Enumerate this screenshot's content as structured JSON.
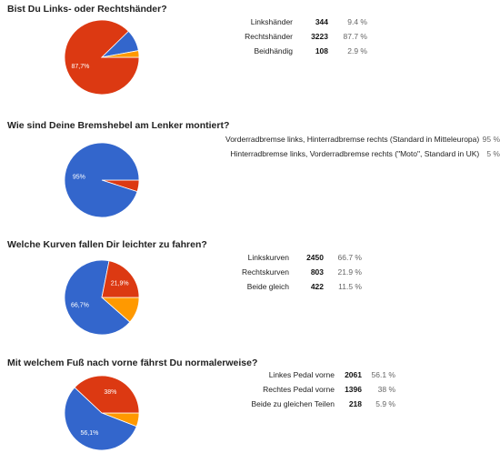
{
  "chart_data": [
    {
      "type": "pie",
      "title": "Bist Du Links- oder Rechtshänder?",
      "slices": [
        {
          "label": "Linkshänder",
          "count": "344",
          "percent": "9.4 %",
          "value": 9.4,
          "color": "#3366cc"
        },
        {
          "label": "Rechtshänder",
          "count": "3223",
          "percent": "87.7 %",
          "value": 87.7,
          "color": "#dc3912",
          "pie_label": "87,7%"
        },
        {
          "label": "Beidhändig",
          "count": "108",
          "percent": "2.9 %",
          "value": 2.9,
          "color": "#ff9900"
        }
      ],
      "slice_order": [
        1,
        0,
        2
      ]
    },
    {
      "type": "pie",
      "title": "Wie sind Deine Bremshebel am Lenker montiert?",
      "slices": [
        {
          "label": "Vorderradbremse links, Hinterradbremse rechts (Standard in Mitteleuropa)",
          "percent": "95 %",
          "value": 95,
          "color": "#3366cc",
          "pie_label": "95%"
        },
        {
          "label": "Hinterradbremse links, Vorderradbremse rechts (\"Moto\", Standard in UK)",
          "percent": "5 %",
          "value": 5,
          "color": "#dc3912"
        }
      ],
      "slice_order": [
        1,
        0
      ]
    },
    {
      "type": "pie",
      "title": "Welche Kurven fallen Dir leichter zu fahren?",
      "slices": [
        {
          "label": "Linkskurven",
          "count": "2450",
          "percent": "66.7 %",
          "value": 66.7,
          "color": "#3366cc",
          "pie_label": "66,7%"
        },
        {
          "label": "Rechtskurven",
          "count": "803",
          "percent": "21.9 %",
          "value": 21.9,
          "color": "#dc3912",
          "pie_label": "21,9%"
        },
        {
          "label": "Beide gleich",
          "count": "422",
          "percent": "11.5 %",
          "value": 11.5,
          "color": "#ff9900"
        }
      ],
      "slice_order": [
        2,
        0,
        1
      ]
    },
    {
      "type": "pie",
      "title": "Mit welchem Fuß nach vorne fährst Du normalerweise?",
      "slices": [
        {
          "label": "Linkes Pedal vorne",
          "count": "2061",
          "percent": "56.1 %",
          "value": 56.1,
          "color": "#3366cc",
          "pie_label": "56,1%"
        },
        {
          "label": "Rechtes Pedal vorne",
          "count": "1396",
          "percent": "38 %",
          "value": 38,
          "color": "#dc3912",
          "pie_label": "38%"
        },
        {
          "label": "Beide zu gleichen Teilen",
          "count": "218",
          "percent": "5.9 %",
          "value": 5.9,
          "color": "#ff9900"
        }
      ],
      "slice_order": [
        2,
        0,
        1
      ]
    }
  ]
}
